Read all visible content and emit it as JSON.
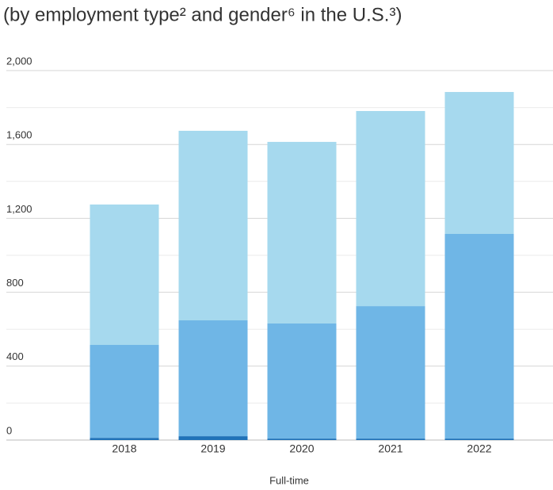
{
  "chart_data": {
    "type": "stacked_bar",
    "title": "(by employment type² and gender⁶ in the U.S.³)",
    "xlabel": "Full-time",
    "categories": [
      "2018",
      "2019",
      "2020",
      "2021",
      "2022"
    ],
    "series": [
      {
        "color": "#1f72b8",
        "values": [
          12,
          21,
          8,
          8,
          8
        ]
      },
      {
        "color": "#6fb6e6",
        "values": [
          503,
          627,
          623,
          717,
          1108
        ]
      },
      {
        "color": "#a6d9ee",
        "values": [
          760,
          1026,
          983,
          1056,
          768
        ]
      }
    ],
    "ylim": [
      0,
      2000
    ],
    "yticks": [
      0,
      400,
      800,
      {
        "value": 1200,
        "label": "1,200"
      },
      {
        "value": 1600,
        "label": "1,600"
      },
      {
        "value": 2000,
        "label": "2,000"
      }
    ],
    "yminorticks": [
      200,
      600,
      1000,
      1400,
      1800
    ],
    "grid": true
  }
}
